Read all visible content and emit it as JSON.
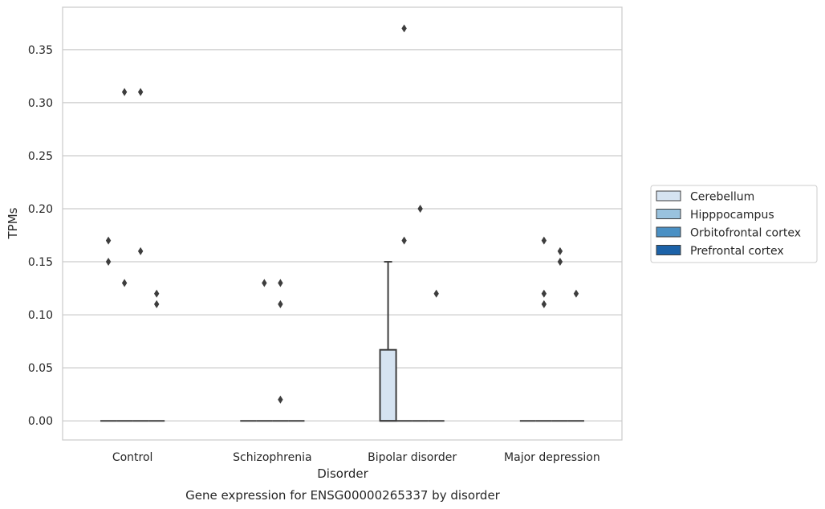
{
  "chart_data": {
    "type": "box",
    "title": "",
    "caption": "Gene expression for ENSG00000265337 by disorder",
    "xlabel": "Disorder",
    "ylabel": "TPMs",
    "ylim": [
      -0.018,
      0.39
    ],
    "yticks": [
      0.0,
      0.05,
      0.1,
      0.15,
      0.2,
      0.25,
      0.3,
      0.35
    ],
    "ytick_labels": [
      "0.00",
      "0.05",
      "0.10",
      "0.15",
      "0.20",
      "0.25",
      "0.30",
      "0.35"
    ],
    "grid": "horizontal",
    "legend_position": "right",
    "categories": [
      "Control",
      "Schizophrenia",
      "Bipolar disorder",
      "Major depression"
    ],
    "series": [
      {
        "name": "Cerebellum",
        "color": "#d5e3f1",
        "boxes": [
          {
            "q1": 0,
            "median": 0,
            "q3": 0,
            "whisker_low": 0,
            "whisker_high": 0,
            "outliers": [
              0.15,
              0.17
            ]
          },
          {
            "q1": 0,
            "median": 0,
            "q3": 0,
            "whisker_low": 0,
            "whisker_high": 0,
            "outliers": []
          },
          {
            "q1": 0,
            "median": 0,
            "q3": 0.067,
            "whisker_low": 0,
            "whisker_high": 0.15,
            "outliers": []
          },
          {
            "q1": 0,
            "median": 0,
            "q3": 0,
            "whisker_low": 0,
            "whisker_high": 0,
            "outliers": []
          }
        ]
      },
      {
        "name": "Hipppocampus",
        "color": "#99c2de",
        "boxes": [
          {
            "q1": 0,
            "median": 0,
            "q3": 0,
            "whisker_low": 0,
            "whisker_high": 0,
            "outliers": [
              0.13,
              0.31
            ]
          },
          {
            "q1": 0,
            "median": 0,
            "q3": 0,
            "whisker_low": 0,
            "whisker_high": 0,
            "outliers": [
              0.13
            ]
          },
          {
            "q1": 0,
            "median": 0,
            "q3": 0,
            "whisker_low": 0,
            "whisker_high": 0,
            "outliers": [
              0.17,
              0.37
            ]
          },
          {
            "q1": 0,
            "median": 0,
            "q3": 0,
            "whisker_low": 0,
            "whisker_high": 0,
            "outliers": [
              0.11,
              0.12,
              0.17
            ]
          }
        ]
      },
      {
        "name": "Orbitofrontal cortex",
        "color": "#4a90c4",
        "boxes": [
          {
            "q1": 0,
            "median": 0,
            "q3": 0,
            "whisker_low": 0,
            "whisker_high": 0,
            "outliers": [
              0.16,
              0.31
            ]
          },
          {
            "q1": 0,
            "median": 0,
            "q3": 0,
            "whisker_low": 0,
            "whisker_high": 0,
            "outliers": [
              0.02,
              0.11,
              0.13
            ]
          },
          {
            "q1": 0,
            "median": 0,
            "q3": 0,
            "whisker_low": 0,
            "whisker_high": 0,
            "outliers": [
              0.2
            ]
          },
          {
            "q1": 0,
            "median": 0,
            "q3": 0,
            "whisker_low": 0,
            "whisker_high": 0,
            "outliers": [
              0.15,
              0.16
            ]
          }
        ]
      },
      {
        "name": "Prefrontal cortex",
        "color": "#1c62a8",
        "boxes": [
          {
            "q1": 0,
            "median": 0,
            "q3": 0,
            "whisker_low": 0,
            "whisker_high": 0,
            "outliers": [
              0.11,
              0.12
            ]
          },
          {
            "q1": 0,
            "median": 0,
            "q3": 0,
            "whisker_low": 0,
            "whisker_high": 0,
            "outliers": []
          },
          {
            "q1": 0,
            "median": 0,
            "q3": 0,
            "whisker_low": 0,
            "whisker_high": 0,
            "outliers": [
              0.12
            ]
          },
          {
            "q1": 0,
            "median": 0,
            "q3": 0,
            "whisker_low": 0,
            "whisker_high": 0,
            "outliers": [
              0.12
            ]
          }
        ]
      }
    ]
  }
}
